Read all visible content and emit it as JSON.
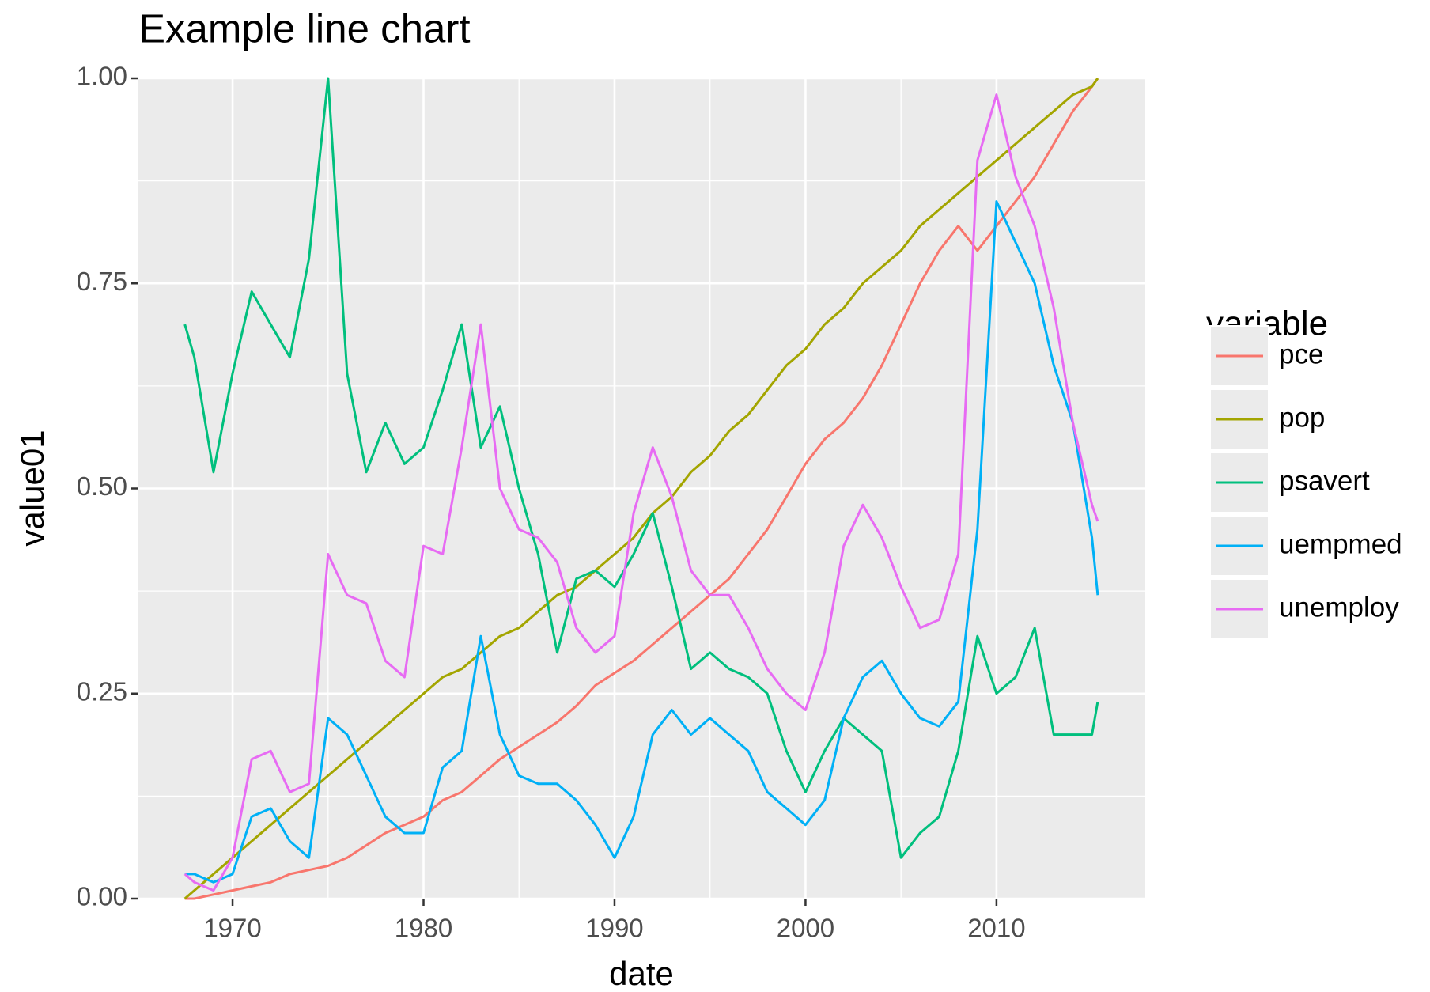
{
  "chart_data": {
    "type": "line",
    "title": "Example line chart",
    "x_label": "date",
    "y_label": "value01",
    "legend_title": "variable",
    "legend_position": "right",
    "grid": true,
    "x": [
      1967.5,
      1968,
      1969,
      1970,
      1971,
      1972,
      1973,
      1974,
      1975,
      1976,
      1977,
      1978,
      1979,
      1980,
      1981,
      1982,
      1983,
      1984,
      1985,
      1986,
      1987,
      1988,
      1989,
      1990,
      1991,
      1992,
      1993,
      1994,
      1995,
      1996,
      1997,
      1998,
      1999,
      2000,
      2001,
      2002,
      2003,
      2004,
      2005,
      2006,
      2007,
      2008,
      2009,
      2010,
      2011,
      2012,
      2013,
      2014,
      2015,
      2015.3
    ],
    "xlim": [
      1965.07,
      2017.79
    ],
    "xticks": [
      1970,
      1980,
      1990,
      2000,
      2010
    ],
    "ylim": [
      0,
      1
    ],
    "yticks": [
      {
        "value": 0,
        "label": "0.00"
      },
      {
        "value": 0.25,
        "label": "0.25"
      },
      {
        "value": 0.5,
        "label": "0.50"
      },
      {
        "value": 0.75,
        "label": "0.75"
      },
      {
        "value": 1,
        "label": "1.00"
      }
    ],
    "series": [
      {
        "name": "pce",
        "color": "#F8766D",
        "values": [
          0,
          0,
          0.005,
          0.01,
          0.015,
          0.02,
          0.03,
          0.035,
          0.04,
          0.05,
          0.065,
          0.08,
          0.09,
          0.1,
          0.12,
          0.13,
          0.15,
          0.17,
          0.185,
          0.2,
          0.215,
          0.235,
          0.26,
          0.275,
          0.29,
          0.31,
          0.33,
          0.35,
          0.37,
          0.39,
          0.42,
          0.45,
          0.49,
          0.53,
          0.56,
          0.58,
          0.61,
          0.65,
          0.7,
          0.75,
          0.79,
          0.82,
          0.79,
          0.82,
          0.85,
          0.88,
          0.92,
          0.96,
          0.99,
          1.0
        ]
      },
      {
        "name": "pop",
        "color": "#A3A500",
        "values": [
          0,
          0.01,
          0.03,
          0.05,
          0.07,
          0.09,
          0.11,
          0.13,
          0.15,
          0.17,
          0.19,
          0.21,
          0.23,
          0.25,
          0.27,
          0.28,
          0.3,
          0.32,
          0.33,
          0.35,
          0.37,
          0.38,
          0.4,
          0.42,
          0.44,
          0.47,
          0.49,
          0.52,
          0.54,
          0.57,
          0.59,
          0.62,
          0.65,
          0.67,
          0.7,
          0.72,
          0.75,
          0.77,
          0.79,
          0.82,
          0.84,
          0.86,
          0.88,
          0.9,
          0.92,
          0.94,
          0.96,
          0.98,
          0.99,
          1.0
        ]
      },
      {
        "name": "psavert",
        "color": "#00BF7D",
        "values": [
          0.7,
          0.66,
          0.52,
          0.64,
          0.74,
          0.7,
          0.66,
          0.78,
          1.0,
          0.64,
          0.52,
          0.58,
          0.53,
          0.55,
          0.62,
          0.7,
          0.55,
          0.6,
          0.5,
          0.42,
          0.3,
          0.39,
          0.4,
          0.38,
          0.42,
          0.47,
          0.38,
          0.28,
          0.3,
          0.28,
          0.27,
          0.25,
          0.18,
          0.13,
          0.18,
          0.22,
          0.2,
          0.18,
          0.05,
          0.08,
          0.1,
          0.18,
          0.32,
          0.25,
          0.27,
          0.33,
          0.2,
          0.2,
          0.2,
          0.24
        ]
      },
      {
        "name": "uempmed",
        "color": "#00B0F6",
        "values": [
          0.03,
          0.03,
          0.02,
          0.03,
          0.1,
          0.11,
          0.07,
          0.05,
          0.22,
          0.2,
          0.15,
          0.1,
          0.08,
          0.08,
          0.16,
          0.18,
          0.32,
          0.2,
          0.15,
          0.14,
          0.14,
          0.12,
          0.09,
          0.05,
          0.1,
          0.2,
          0.23,
          0.2,
          0.22,
          0.2,
          0.18,
          0.13,
          0.11,
          0.09,
          0.12,
          0.22,
          0.27,
          0.29,
          0.25,
          0.22,
          0.21,
          0.24,
          0.45,
          0.85,
          0.8,
          0.75,
          0.65,
          0.58,
          0.44,
          0.37
        ]
      },
      {
        "name": "unemploy",
        "color": "#E76BF3",
        "values": [
          0.03,
          0.02,
          0.01,
          0.05,
          0.17,
          0.18,
          0.13,
          0.14,
          0.42,
          0.37,
          0.36,
          0.29,
          0.27,
          0.43,
          0.42,
          0.55,
          0.7,
          0.5,
          0.45,
          0.44,
          0.41,
          0.33,
          0.3,
          0.32,
          0.47,
          0.55,
          0.49,
          0.4,
          0.37,
          0.37,
          0.33,
          0.28,
          0.25,
          0.23,
          0.3,
          0.43,
          0.48,
          0.44,
          0.38,
          0.33,
          0.34,
          0.42,
          0.9,
          0.98,
          0.88,
          0.82,
          0.72,
          0.58,
          0.48,
          0.46
        ]
      }
    ]
  }
}
